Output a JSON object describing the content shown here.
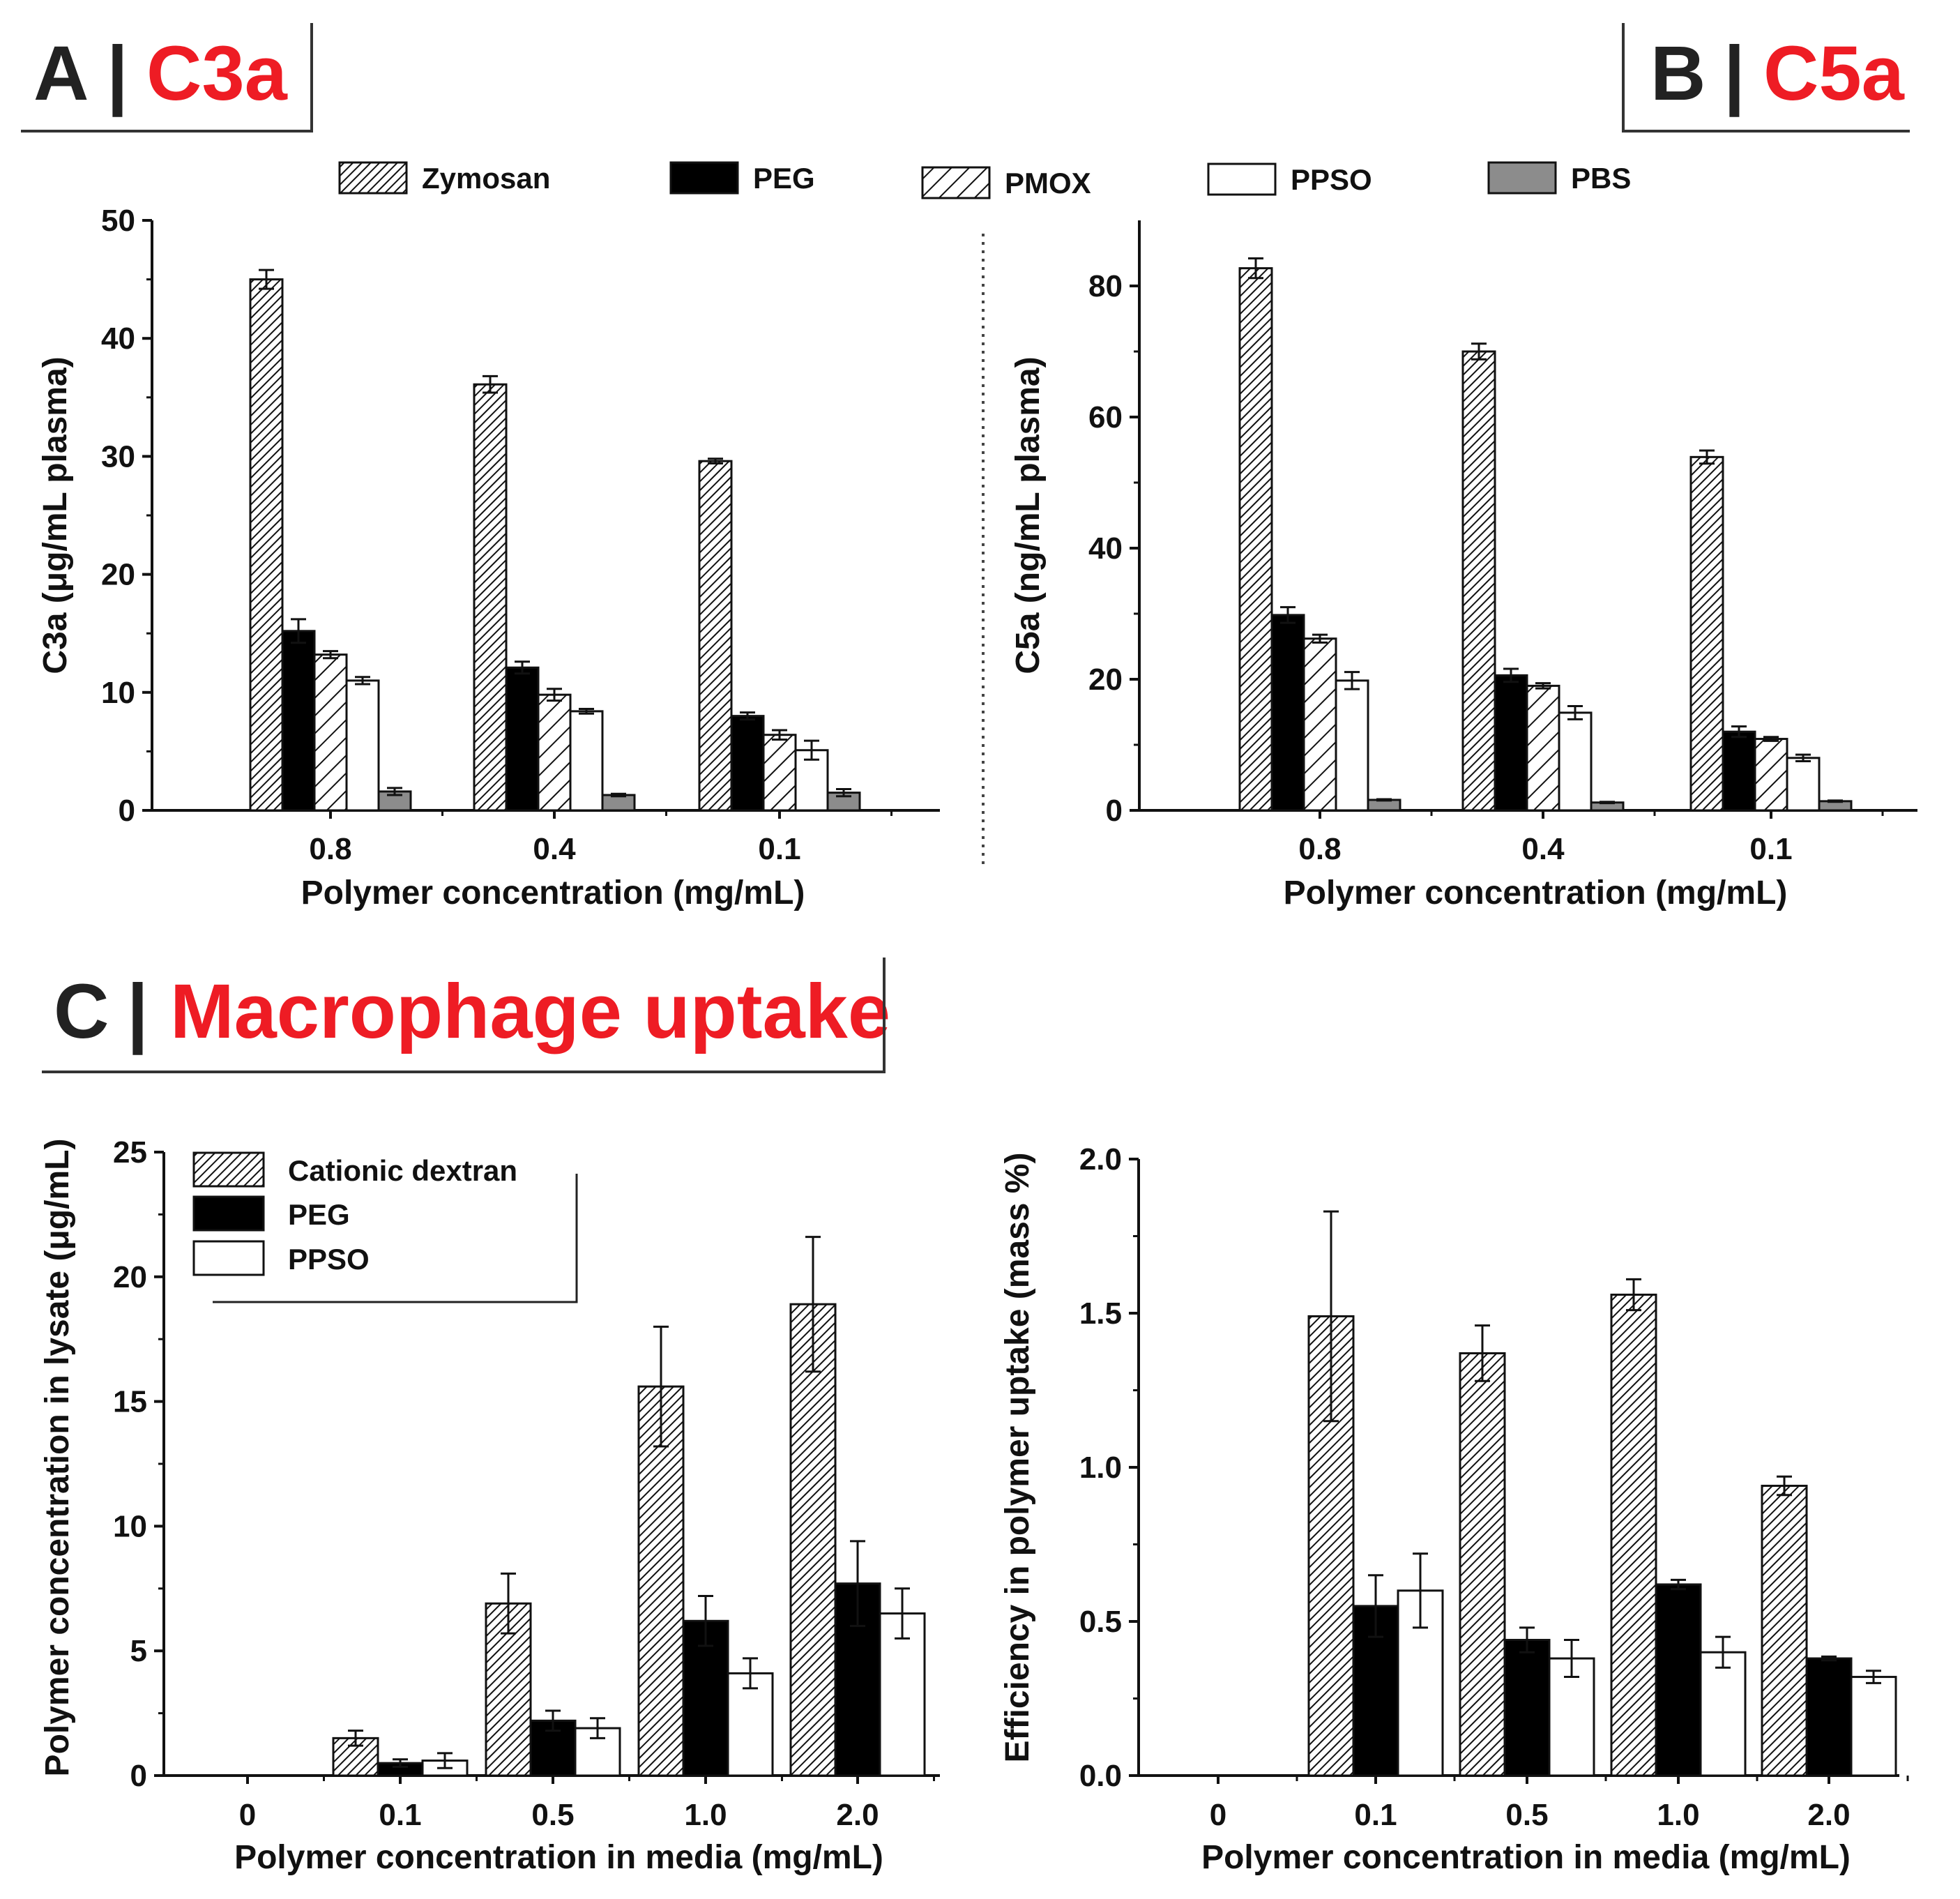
{
  "colors": {
    "title_red": "#ee1c24",
    "text": "#111111",
    "pbs_gray": "#8c8c8c"
  },
  "panels": {
    "a": {
      "letter": "A",
      "sep": "|",
      "name": "C3a"
    },
    "b": {
      "letter": "B",
      "sep": "|",
      "name": "C5a"
    },
    "c": {
      "letter": "C",
      "sep": "|",
      "name": "Macrophage uptake"
    }
  },
  "legend_top": [
    {
      "label": "Zymosan",
      "pattern": "hatch-dense"
    },
    {
      "label": "PEG",
      "pattern": "solid-black"
    },
    {
      "label": "PMOX",
      "pattern": "hatch-wide"
    },
    {
      "label": "PPSO",
      "pattern": "white"
    },
    {
      "label": "PBS",
      "pattern": "solid-gray"
    }
  ],
  "legend_bottom": [
    {
      "label": "Cationic dextran",
      "pattern": "hatch-dense"
    },
    {
      "label": "PEG",
      "pattern": "solid-black"
    },
    {
      "label": "PPSO",
      "pattern": "white"
    }
  ],
  "chart_data": [
    {
      "id": "c3a",
      "type": "bar",
      "xlabel": "Polymer concentration (mg/mL)",
      "ylabel": "C3a (μg/mL plasma)",
      "ylim": [
        0,
        50
      ],
      "yticks": [
        0,
        10,
        20,
        30,
        40,
        50
      ],
      "categories": [
        "0.8",
        "0.4",
        "0.1"
      ],
      "series": [
        {
          "name": "Zymosan",
          "values": [
            45.0,
            36.1,
            29.6
          ],
          "errors": [
            0.8,
            0.7,
            0.2
          ]
        },
        {
          "name": "PEG",
          "values": [
            15.2,
            12.1,
            8.0
          ],
          "errors": [
            1.0,
            0.5,
            0.3
          ]
        },
        {
          "name": "PMOX",
          "values": [
            13.2,
            9.8,
            6.4
          ],
          "errors": [
            0.3,
            0.5,
            0.4
          ]
        },
        {
          "name": "PPSO",
          "values": [
            11.0,
            8.4,
            5.1
          ],
          "errors": [
            0.3,
            0.2,
            0.8
          ]
        },
        {
          "name": "PBS",
          "values": [
            1.6,
            1.3,
            1.5
          ],
          "errors": [
            0.3,
            0.1,
            0.3
          ]
        }
      ]
    },
    {
      "id": "c5a",
      "type": "bar",
      "xlabel": "Polymer concentration  (mg/mL)",
      "ylabel": "C5a (ng/mL plasma)",
      "ylim": [
        0,
        90
      ],
      "yticks": [
        0,
        20,
        40,
        60,
        80
      ],
      "categories": [
        "0.8",
        "0.4",
        "0.1"
      ],
      "series": [
        {
          "name": "Zymosan",
          "values": [
            82.7,
            70.0,
            53.9
          ],
          "errors": [
            1.5,
            1.2,
            1.0
          ]
        },
        {
          "name": "PEG",
          "values": [
            29.8,
            20.6,
            12.0
          ],
          "errors": [
            1.2,
            1.0,
            0.8
          ]
        },
        {
          "name": "PMOX",
          "values": [
            26.2,
            19.0,
            10.9
          ],
          "errors": [
            0.6,
            0.4,
            0.3
          ]
        },
        {
          "name": "PPSO",
          "values": [
            19.8,
            14.9,
            8.0
          ],
          "errors": [
            1.3,
            1.0,
            0.5
          ]
        },
        {
          "name": "PBS",
          "values": [
            1.6,
            1.2,
            1.4
          ],
          "errors": [
            0.1,
            0.1,
            0.1
          ]
        }
      ]
    },
    {
      "id": "lysate",
      "type": "bar",
      "xlabel": "Polymer concentration in media (mg/mL)",
      "ylabel": "Polymer concentration in  lysate (μg/mL)",
      "ylim": [
        0,
        25
      ],
      "yticks": [
        0,
        5,
        10,
        15,
        20,
        25
      ],
      "categories": [
        "0",
        "0.1",
        "0.5",
        "1.0",
        "2.0"
      ],
      "series": [
        {
          "name": "Cationic dextran",
          "values": [
            0,
            1.5,
            6.9,
            15.6,
            18.9
          ],
          "errors": [
            0,
            0.3,
            1.2,
            2.4,
            2.7
          ]
        },
        {
          "name": "PEG",
          "values": [
            0,
            0.5,
            2.2,
            6.2,
            7.7
          ],
          "errors": [
            0,
            0.15,
            0.4,
            1.0,
            1.7
          ]
        },
        {
          "name": "PPSO",
          "values": [
            0,
            0.6,
            1.9,
            4.1,
            6.5
          ],
          "errors": [
            0,
            0.3,
            0.4,
            0.6,
            1.0
          ]
        }
      ]
    },
    {
      "id": "efficiency",
      "type": "bar",
      "xlabel": "Polymer concentration in media (mg/mL)",
      "ylabel": "Efficiency in polymer uptake (mass %)",
      "ylim": [
        0,
        2.0
      ],
      "yticks": [
        "0.0",
        "0.5",
        "1.0",
        "1.5",
        "2.0"
      ],
      "categories": [
        "0",
        "0.1",
        "0.5",
        "1.0",
        "2.0"
      ],
      "series": [
        {
          "name": "Cationic dextran",
          "values": [
            0,
            1.49,
            1.37,
            1.56,
            0.94
          ],
          "errors": [
            0,
            0.34,
            0.09,
            0.05,
            0.03
          ]
        },
        {
          "name": "PEG",
          "values": [
            0,
            0.55,
            0.44,
            0.62,
            0.38
          ],
          "errors": [
            0,
            0.1,
            0.04,
            0.015,
            0.006
          ]
        },
        {
          "name": "PPSO",
          "values": [
            0,
            0.6,
            0.38,
            0.4,
            0.32
          ],
          "errors": [
            0,
            0.12,
            0.06,
            0.05,
            0.02
          ]
        }
      ]
    }
  ]
}
